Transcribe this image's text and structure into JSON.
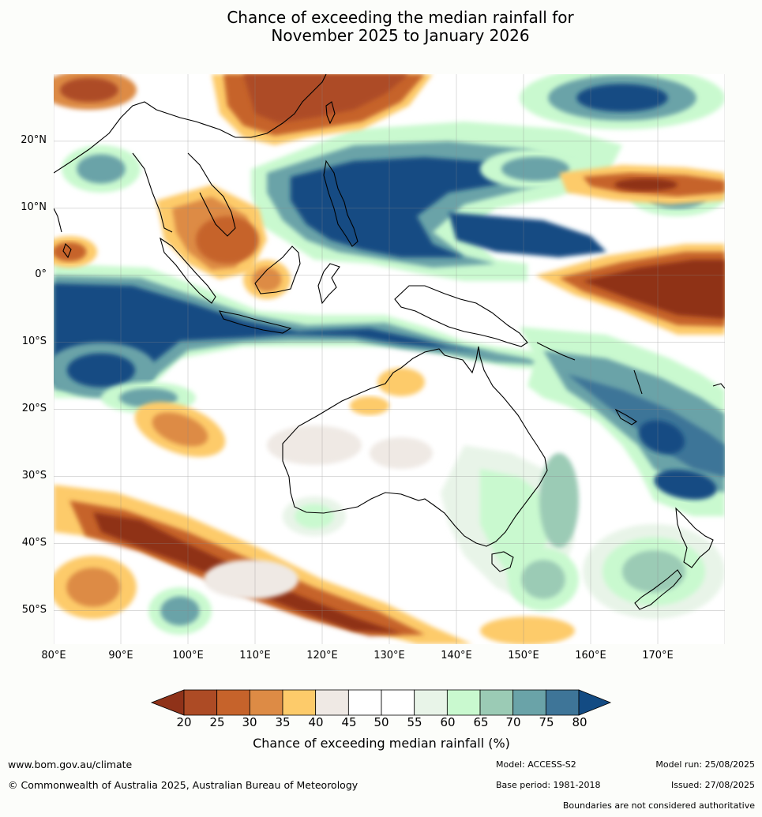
{
  "title": {
    "line1": "Chance of exceeding the median rainfall for",
    "line2": "November 2025 to January 2026"
  },
  "map": {
    "lat_ticks": [
      "20°N",
      "10°N",
      "0°",
      "10°S",
      "20°S",
      "30°S",
      "40°S",
      "50°S"
    ],
    "lon_ticks": [
      "80°E",
      "90°E",
      "100°E",
      "110°E",
      "120°E",
      "130°E",
      "140°E",
      "150°E",
      "160°E",
      "170°E"
    ],
    "extent": {
      "lon_min": 80,
      "lon_max": 180,
      "lat_min": -55,
      "lat_max": 30
    },
    "colors": {
      "p20": "#8f3219",
      "p25": "#ad4b25",
      "p30": "#c6632b",
      "p35": "#dd8b45",
      "p40": "#fdcb6a",
      "p45": "#efe9e4",
      "p50": "#ffffff",
      "p55": "#ffffff",
      "p60": "#e8f4e8",
      "p65": "#c9f9cf",
      "p70": "#9bcbb5",
      "p75": "#6aa3a8",
      "p80": "#3e7598",
      "p85": "#134b83"
    }
  },
  "colorbar": {
    "ticks": [
      "20",
      "25",
      "30",
      "35",
      "40",
      "45",
      "50",
      "55",
      "60",
      "65",
      "70",
      "75",
      "80"
    ],
    "colors": [
      "#8f3219",
      "#ad4b25",
      "#c6632b",
      "#dd8b45",
      "#fdcb6a",
      "#efe9e4",
      "#ffffff",
      "#ffffff",
      "#e8f4e8",
      "#c9f9cf",
      "#9bcbb5",
      "#6aa3a8",
      "#3e7598",
      "#134b83"
    ],
    "label": "Chance of exceeding median rainfall (%)"
  },
  "footer": {
    "website": "www.bom.gov.au/climate",
    "copyright": "© Commonwealth of Australia 2025, Australian Bureau of Meteorology",
    "model": "Model: ACCESS-S2",
    "base_period": "Base period: 1981-2018",
    "model_run": "Model run: 25/08/2025",
    "issued": "Issued: 27/08/2025",
    "disclaimer": "Boundaries are not considered authoritative"
  }
}
